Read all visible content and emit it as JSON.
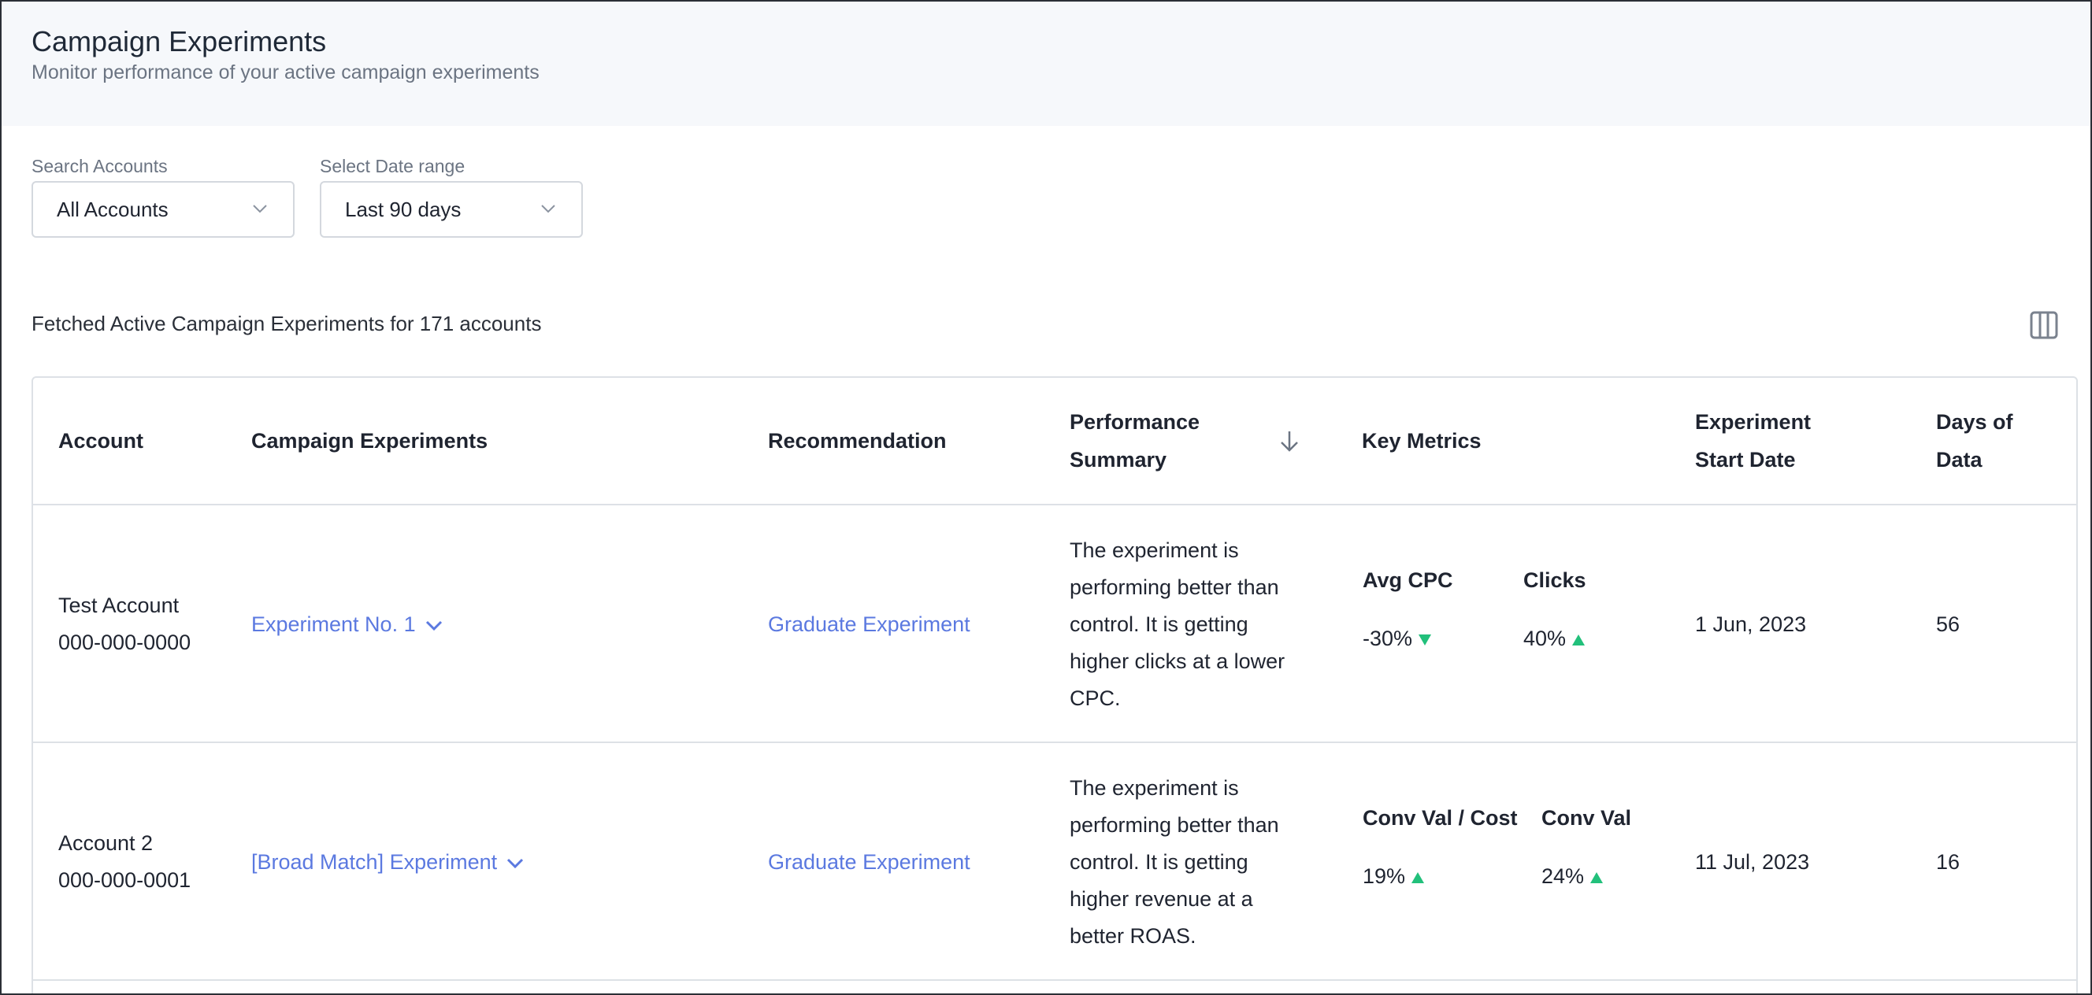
{
  "header": {
    "title": "Campaign Experiments",
    "subtitle": "Monitor performance of your active campaign experiments"
  },
  "filters": {
    "accounts": {
      "label": "Search Accounts",
      "value": "All Accounts"
    },
    "date_range": {
      "label": "Select Date range",
      "value": "Last 90 days"
    }
  },
  "status_text": "Fetched Active Campaign Experiments for 171 accounts",
  "table": {
    "columns": {
      "account": "Account",
      "campaign_experiments": "Campaign Experiments",
      "recommendation": "Recommendation",
      "performance_summary_1": "Performance",
      "performance_summary_2": "Summary",
      "key_metrics": "Key Metrics",
      "start_date_1": "Experiment",
      "start_date_2": "Start Date",
      "days_1": "Days of",
      "days_2": "Data"
    },
    "rows": [
      {
        "account_name": "Test Account",
        "account_id": "000-000-0000",
        "experiment": "Experiment No. 1",
        "recommendation": "Graduate Experiment",
        "summary": [
          "The experiment is",
          "performing better than",
          "control. It is getting",
          "higher clicks at a lower",
          "CPC."
        ],
        "metric1_name": "Avg CPC",
        "metric1_value": "-30%",
        "metric1_trend": "down",
        "metric2_name": "Clicks",
        "metric2_value": "40%",
        "metric2_trend": "up",
        "start_date": "1 Jun, 2023",
        "days": "56"
      },
      {
        "account_name": "Account 2",
        "account_id": "000-000-0001",
        "experiment": "[Broad Match] Experiment",
        "recommendation": "Graduate Experiment",
        "summary": [
          "The experiment is",
          "performing better than",
          "control. It is getting",
          "higher revenue at a",
          "better ROAS."
        ],
        "metric1_name": "Conv Val / Cost",
        "metric1_value": "19%",
        "metric1_trend": "up",
        "metric2_name": "Conv Val",
        "metric2_value": "24%",
        "metric2_trend": "up",
        "start_date": "11 Jul, 2023",
        "days": "16"
      }
    ]
  },
  "colors": {
    "link": "#5b79e0",
    "trend": "#22c07b",
    "header_bg": "#f6f8fb"
  },
  "icons": [
    "chevron-down-icon",
    "columns-icon",
    "arrow-down-icon",
    "triangle-down-icon",
    "triangle-up-icon"
  ]
}
